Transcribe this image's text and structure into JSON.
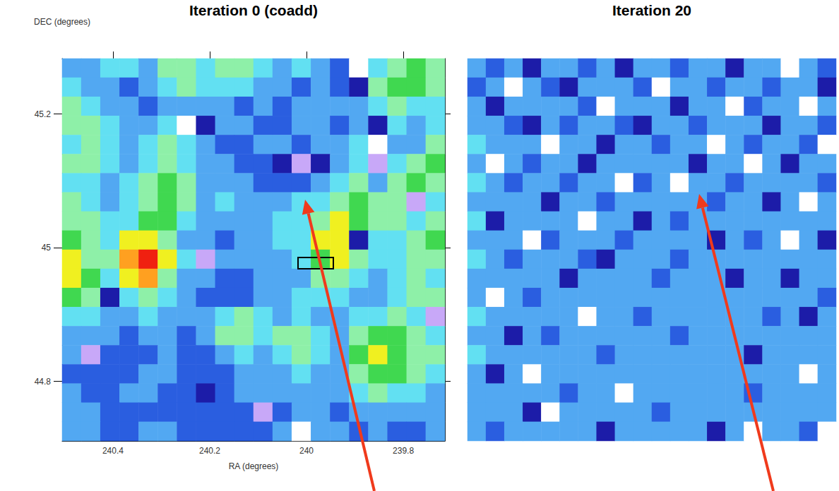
{
  "chart_data": [
    {
      "type": "heatmap",
      "title": "Iteration 0 (coadd)",
      "x_label": "RA (degrees)",
      "y_label": "DEC (degrees)",
      "xlim": [
        240.505,
        239.714
      ],
      "ylim": [
        44.711,
        45.283
      ],
      "xticks": [
        240.4,
        240.2,
        240,
        239.8
      ],
      "yticks": [
        44.8,
        45,
        45.2
      ],
      "color_range": [
        0,
        10
      ],
      "cells": [
        [
          4,
          4,
          5,
          5,
          4,
          6,
          6,
          5,
          6,
          6,
          5,
          4,
          5,
          4,
          3,
          0,
          5,
          6,
          7,
          6
        ],
        [
          5,
          4,
          4,
          3,
          4,
          5,
          6,
          5,
          5,
          5,
          4,
          4,
          3,
          4,
          3,
          2,
          6,
          7,
          7,
          6
        ],
        [
          6,
          5,
          4,
          4,
          3,
          4,
          4,
          4,
          4,
          3,
          4,
          3,
          4,
          4,
          4,
          4,
          5,
          6,
          5,
          5
        ],
        [
          6,
          6,
          5,
          4,
          4,
          5,
          0,
          2,
          4,
          4,
          3,
          3,
          4,
          4,
          3,
          4,
          2,
          5,
          4,
          5
        ],
        [
          5,
          6,
          5,
          4,
          5,
          6,
          5,
          4,
          3,
          3,
          4,
          4,
          3,
          4,
          4,
          5,
          0,
          4,
          4,
          6
        ],
        [
          6,
          6,
          5,
          4,
          5,
          6,
          5,
          4,
          4,
          3,
          3,
          2,
          1,
          2,
          4,
          5,
          1,
          5,
          6,
          7
        ],
        [
          5,
          5,
          4,
          5,
          6,
          7,
          6,
          4,
          4,
          4,
          3,
          3,
          3,
          4,
          5,
          6,
          4,
          6,
          7,
          6
        ],
        [
          6,
          5,
          4,
          5,
          6,
          7,
          6,
          4,
          5,
          4,
          4,
          4,
          5,
          5,
          6,
          7,
          6,
          6,
          1,
          5
        ],
        [
          6,
          6,
          5,
          5,
          7,
          7,
          5,
          4,
          4,
          4,
          4,
          5,
          5,
          6,
          8,
          7,
          6,
          6,
          5,
          6
        ],
        [
          7,
          6,
          5,
          8,
          8,
          6,
          4,
          4,
          3,
          4,
          4,
          5,
          5,
          8,
          8,
          2,
          5,
          5,
          6,
          7
        ],
        [
          8,
          6,
          6,
          9,
          10,
          8,
          5,
          1,
          4,
          4,
          4,
          4,
          5,
          7,
          8,
          6,
          5,
          5,
          6,
          6
        ],
        [
          8,
          7,
          5,
          8,
          9,
          6,
          4,
          4,
          3,
          3,
          4,
          4,
          4,
          6,
          6,
          5,
          4,
          5,
          6,
          5
        ],
        [
          7,
          6,
          2,
          5,
          6,
          5,
          4,
          3,
          3,
          3,
          4,
          4,
          5,
          5,
          5,
          4,
          4,
          5,
          6,
          6
        ],
        [
          5,
          5,
          4,
          4,
          5,
          4,
          4,
          4,
          5,
          6,
          5,
          4,
          5,
          4,
          4,
          5,
          5,
          6,
          5,
          1
        ],
        [
          4,
          4,
          4,
          3,
          4,
          4,
          3,
          4,
          6,
          6,
          5,
          6,
          6,
          5,
          4,
          6,
          7,
          7,
          6,
          5
        ],
        [
          4,
          1,
          3,
          3,
          3,
          4,
          3,
          3,
          4,
          5,
          4,
          5,
          6,
          5,
          4,
          7,
          8,
          7,
          6,
          6
        ],
        [
          3,
          3,
          3,
          3,
          4,
          4,
          3,
          3,
          3,
          4,
          4,
          4,
          5,
          4,
          4,
          6,
          7,
          7,
          6,
          5
        ],
        [
          4,
          3,
          3,
          4,
          4,
          3,
          3,
          2,
          3,
          4,
          4,
          4,
          4,
          4,
          4,
          5,
          6,
          5,
          5,
          4
        ],
        [
          4,
          4,
          3,
          3,
          3,
          3,
          3,
          3,
          3,
          3,
          1,
          3,
          4,
          4,
          3,
          4,
          4,
          4,
          4,
          4
        ],
        [
          4,
          4,
          3,
          3,
          4,
          4,
          3,
          3,
          3,
          3,
          3,
          4,
          0,
          4,
          4,
          3,
          4,
          3,
          3,
          4
        ]
      ]
    },
    {
      "type": "heatmap",
      "title": "Iteration 20",
      "tick_labels": false,
      "color_range": [
        0,
        10
      ],
      "cells": [
        [
          4,
          3,
          4,
          2,
          4,
          4,
          3,
          4,
          2,
          4,
          4,
          3,
          4,
          4,
          2,
          4,
          4,
          0,
          4,
          3
        ],
        [
          3,
          4,
          0,
          4,
          3,
          2,
          4,
          4,
          4,
          3,
          0,
          4,
          4,
          3,
          4,
          4,
          3,
          4,
          4,
          2
        ],
        [
          4,
          2,
          4,
          4,
          4,
          4,
          3,
          0,
          4,
          4,
          4,
          2,
          4,
          4,
          0,
          3,
          4,
          4,
          0,
          4
        ],
        [
          4,
          4,
          3,
          2,
          4,
          3,
          4,
          4,
          3,
          2,
          4,
          4,
          3,
          4,
          4,
          4,
          2,
          4,
          4,
          3
        ],
        [
          5,
          4,
          4,
          4,
          0,
          4,
          4,
          2,
          4,
          4,
          3,
          4,
          4,
          0,
          4,
          3,
          4,
          4,
          3,
          0
        ],
        [
          4,
          0,
          4,
          3,
          4,
          4,
          2,
          4,
          4,
          4,
          4,
          4,
          2,
          4,
          4,
          0,
          4,
          2,
          4,
          4
        ],
        [
          5,
          4,
          3,
          4,
          4,
          3,
          4,
          4,
          0,
          3,
          4,
          0,
          4,
          4,
          3,
          4,
          4,
          4,
          4,
          3
        ],
        [
          4,
          4,
          4,
          4,
          2,
          4,
          4,
          3,
          4,
          4,
          4,
          4,
          4,
          3,
          4,
          4,
          2,
          4,
          0,
          4
        ],
        [
          5,
          2,
          4,
          4,
          4,
          4,
          0,
          4,
          4,
          2,
          4,
          3,
          4,
          4,
          4,
          4,
          4,
          4,
          4,
          4
        ],
        [
          4,
          4,
          4,
          0,
          3,
          4,
          4,
          4,
          3,
          4,
          4,
          4,
          4,
          2,
          4,
          3,
          4,
          0,
          4,
          2
        ],
        [
          5,
          4,
          3,
          4,
          4,
          4,
          3,
          2,
          4,
          4,
          4,
          3,
          4,
          4,
          4,
          4,
          4,
          4,
          4,
          4
        ],
        [
          4,
          4,
          4,
          4,
          4,
          2,
          4,
          4,
          4,
          4,
          3,
          4,
          4,
          4,
          2,
          4,
          4,
          2,
          4,
          4
        ],
        [
          4,
          0,
          4,
          3,
          4,
          4,
          4,
          4,
          4,
          4,
          4,
          4,
          4,
          4,
          4,
          4,
          4,
          4,
          4,
          3
        ],
        [
          5,
          4,
          4,
          4,
          4,
          4,
          0,
          4,
          4,
          3,
          4,
          4,
          4,
          4,
          4,
          4,
          3,
          4,
          2,
          4
        ],
        [
          4,
          4,
          2,
          4,
          3,
          4,
          4,
          4,
          4,
          4,
          4,
          3,
          4,
          4,
          4,
          4,
          4,
          4,
          4,
          4
        ],
        [
          5,
          4,
          4,
          4,
          4,
          4,
          4,
          3,
          4,
          4,
          4,
          4,
          4,
          4,
          4,
          2,
          4,
          4,
          4,
          4
        ],
        [
          4,
          2,
          4,
          0,
          4,
          4,
          4,
          4,
          4,
          4,
          4,
          4,
          4,
          4,
          4,
          4,
          4,
          4,
          0,
          4
        ],
        [
          4,
          4,
          4,
          4,
          4,
          3,
          4,
          4,
          0,
          4,
          4,
          4,
          4,
          4,
          4,
          3,
          4,
          4,
          4,
          4
        ],
        [
          4,
          4,
          4,
          2,
          0,
          4,
          4,
          4,
          4,
          4,
          3,
          4,
          4,
          4,
          4,
          4,
          4,
          4,
          4,
          4
        ],
        [
          4,
          3,
          4,
          4,
          4,
          4,
          4,
          2,
          4,
          4,
          4,
          4,
          4,
          2,
          4,
          0,
          4,
          4,
          3,
          0
        ]
      ]
    }
  ]
}
